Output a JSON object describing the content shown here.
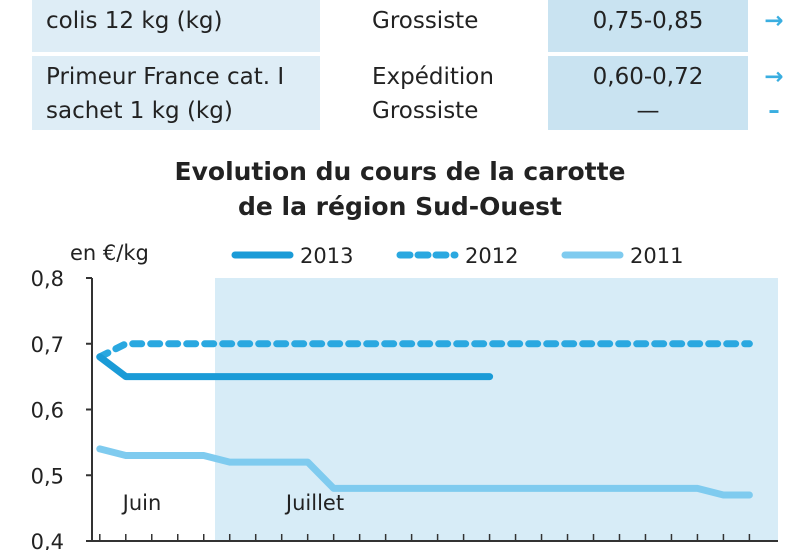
{
  "table": {
    "rows": [
      {
        "product": [
          "colis 12 kg (kg)"
        ],
        "stages": [
          "Grossiste"
        ],
        "prices": [
          "0,75-0,85"
        ],
        "trends": [
          "→"
        ]
      },
      {
        "product": [
          "Primeur France cat. I",
          "sachet 1 kg (kg)"
        ],
        "stages": [
          "Expédition",
          "Grossiste"
        ],
        "prices": [
          "0,60-0,72",
          "—"
        ],
        "trends": [
          "→",
          "–"
        ]
      }
    ]
  },
  "chart_data": {
    "type": "line",
    "title": [
      "Evolution du cours de la carotte",
      "de la région Sud-Ouest"
    ],
    "ylabel": "en €/kg",
    "ylim": [
      0.4,
      0.8
    ],
    "yticks": [
      "0,8",
      "0,7",
      "0,6",
      "0,5",
      "0,4"
    ],
    "ytick_values": [
      0.8,
      0.7,
      0.6,
      0.5,
      0.4
    ],
    "x_sections": [
      "Juin",
      "Juillet"
    ],
    "x_count": 26,
    "legend_position": "top",
    "series": [
      {
        "name": "2013",
        "style": "solid",
        "color": "#1a9bd7",
        "x": [
          0,
          1,
          2,
          3,
          4,
          5,
          6,
          7,
          8,
          9,
          10,
          11,
          12,
          13,
          14,
          15
        ],
        "values": [
          0.68,
          0.65,
          0.65,
          0.65,
          0.65,
          0.65,
          0.65,
          0.65,
          0.65,
          0.65,
          0.65,
          0.65,
          0.65,
          0.65,
          0.65,
          0.65
        ]
      },
      {
        "name": "2012",
        "style": "dashed",
        "color": "#2aa8e0",
        "x": [
          0,
          1,
          2,
          3,
          4,
          5,
          6,
          7,
          8,
          9,
          10,
          11,
          12,
          13,
          14,
          15,
          16,
          17,
          18,
          19,
          20,
          21,
          22,
          23,
          24,
          25
        ],
        "values": [
          0.68,
          0.7,
          0.7,
          0.7,
          0.7,
          0.7,
          0.7,
          0.7,
          0.7,
          0.7,
          0.7,
          0.7,
          0.7,
          0.7,
          0.7,
          0.7,
          0.7,
          0.7,
          0.7,
          0.7,
          0.7,
          0.7,
          0.7,
          0.7,
          0.7,
          0.7
        ]
      },
      {
        "name": "2011",
        "style": "solid",
        "color": "#7fcbef",
        "x": [
          0,
          1,
          2,
          3,
          4,
          5,
          6,
          7,
          8,
          9,
          10,
          11,
          12,
          13,
          14,
          15,
          16,
          17,
          18,
          19,
          20,
          21,
          22,
          23,
          24,
          25
        ],
        "values": [
          0.54,
          0.53,
          0.53,
          0.53,
          0.53,
          0.52,
          0.52,
          0.52,
          0.52,
          0.48,
          0.48,
          0.48,
          0.48,
          0.48,
          0.48,
          0.48,
          0.48,
          0.48,
          0.48,
          0.48,
          0.48,
          0.48,
          0.48,
          0.48,
          0.47,
          0.47
        ]
      }
    ],
    "colors": {
      "axis": "#333333",
      "band": "#d7ecf7",
      "plot_bg": "#ffffff"
    }
  }
}
